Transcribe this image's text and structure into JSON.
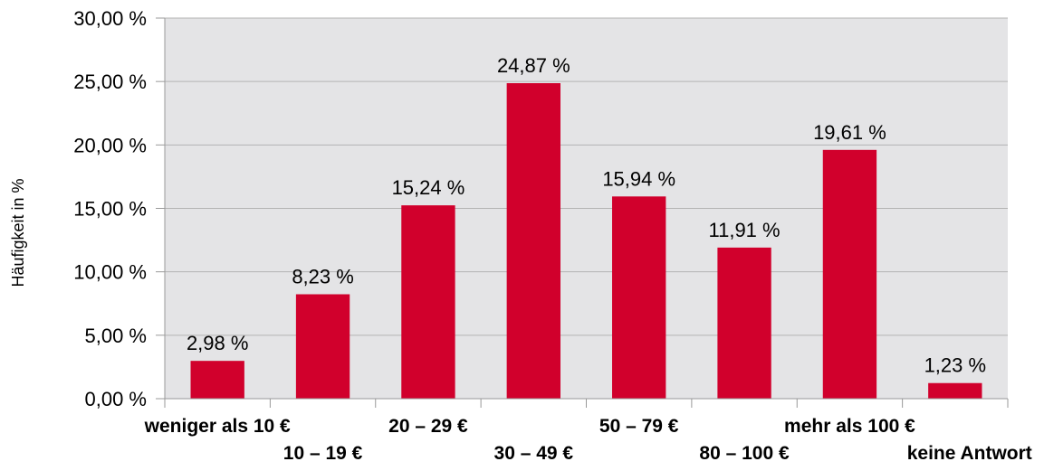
{
  "chart_data": {
    "type": "bar",
    "title": "",
    "xlabel": "",
    "ylabel": "Häufigkeit in %",
    "ylim": [
      0,
      30
    ],
    "yticks": [
      "0,00 %",
      "5,00 %",
      "10,00 %",
      "15,00 %",
      "20,00 %",
      "25,00 %",
      "30,00 %"
    ],
    "categories": [
      "weniger als 10 €",
      "10 – 19 €",
      "20 – 29 €",
      "30 – 49 €",
      "50 – 79 €",
      "80 – 100 €",
      "mehr als 100 €",
      "keine Antwort"
    ],
    "values": [
      2.98,
      8.23,
      15.24,
      24.87,
      15.94,
      11.91,
      19.61,
      1.23
    ],
    "data_labels": [
      "2,98 %",
      "8,23 %",
      "15,24 %",
      "24,87 %",
      "15,94 %",
      "11,91 %",
      "19,61 %",
      "1,23 %"
    ],
    "grid": true,
    "legend": "none",
    "colors": {
      "bar": "#d1002c",
      "plot_background": "#e4e4e6",
      "grid": "#b3b3b3",
      "axis": "#999999"
    }
  }
}
